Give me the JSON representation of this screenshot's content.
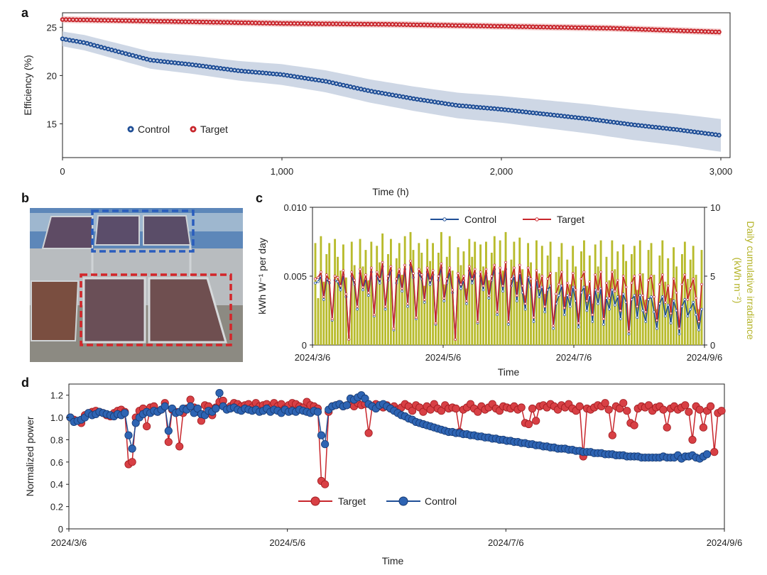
{
  "colors": {
    "control": "#1f4e96",
    "target": "#c8262c",
    "irradiance": "#b8bb2c",
    "control_band": "#c5d0e0",
    "target_band": "#f1c6c6"
  },
  "chart_data": [
    {
      "panel": "a",
      "type": "scatter",
      "xlabel": "Time (h)",
      "ylabel": "Efficiency (%)",
      "xlim": [
        0,
        3000
      ],
      "ylim": [
        11.5,
        26.5
      ],
      "xticks": [
        "0",
        "1,000",
        "2,000",
        "3,000"
      ],
      "xtick_values": [
        0,
        1000,
        2000,
        3000
      ],
      "yticks": [
        "15",
        "20",
        "25"
      ],
      "ytick_values": [
        15,
        20,
        25
      ],
      "legend": [
        "Control",
        "Target"
      ],
      "series": [
        {
          "name": "Control",
          "x": [
            0,
            100,
            200,
            400,
            600,
            800,
            1000,
            1200,
            1400,
            1600,
            1800,
            2000,
            2200,
            2400,
            2600,
            2800,
            3000
          ],
          "values": [
            23.8,
            23.4,
            22.8,
            21.6,
            21.1,
            20.5,
            20.1,
            19.4,
            18.4,
            17.6,
            16.9,
            16.5,
            16.0,
            15.5,
            14.9,
            14.4,
            13.8
          ],
          "band": 1.7
        },
        {
          "name": "Target",
          "x": [
            0,
            500,
            1000,
            1500,
            2000,
            2500,
            3000
          ],
          "values": [
            25.8,
            25.6,
            25.4,
            25.3,
            25.1,
            24.9,
            24.5
          ],
          "band": 0.35
        }
      ]
    },
    {
      "panel": "c",
      "type": "line",
      "xlabel": "Time",
      "ylabel": "kWh W⁻¹ per day",
      "ylabel_right": "Daily cumulative irradiance (kWh m⁻²)",
      "ylabel_right_line1": "Daily cumulative irradiance",
      "ylabel_right_line2": "(kWh m⁻²)",
      "ylim": [
        0,
        0.01
      ],
      "ylim_right": [
        0,
        10
      ],
      "xticks": [
        "2024/3/6",
        "2024/5/6",
        "2024/7/6",
        "2024/9/6"
      ],
      "yticks": [
        "0",
        "0.005",
        "0.010"
      ],
      "yticks_right": [
        "0",
        "5",
        "10"
      ],
      "legend": [
        "Control",
        "Target"
      ],
      "irradiance": [
        7.4,
        3.4,
        7.9,
        4.6,
        6.6,
        7.4,
        1.8,
        7.7,
        6.4,
        5.4,
        7.3,
        4.9,
        0.7,
        7.5,
        5.8,
        3.1,
        7.7,
        5.7,
        6.9,
        4.7,
        7.5,
        2.5,
        7.2,
        6.0,
        8.1,
        3.4,
        6.6,
        7.7,
        1.3,
        6.3,
        7.4,
        5.1,
        7.9,
        3.6,
        8.2,
        6.9,
        2.6,
        7.4,
        6.7,
        4.3,
        7.7,
        6.1,
        7.4,
        2.3,
        6.7,
        8.2,
        4.4,
        6.4,
        7.9,
        5.4,
        1.2,
        7.1,
        5.8,
        6.8,
        4.1,
        7.7,
        6.4,
        7.5,
        2.2,
        7.3,
        5.7,
        7.5,
        4.7,
        6.7,
        7.9,
        3.1,
        7.6,
        5.4,
        8.2,
        2.2,
        6.2,
        7.5,
        4.6,
        7.8,
        5.5,
        3.6,
        7.4,
        6.0,
        2.5,
        7.6,
        5.2,
        7.2,
        3.7,
        6.5,
        7.5,
        1.3,
        5.3,
        6.4,
        7.4,
        3.5,
        6.2,
        4.4,
        7.2,
        5.7,
        2.3,
        6.8,
        7.6,
        4.3,
        6.5,
        3.0,
        7.3,
        5.7,
        7.6,
        2.6,
        6.4,
        4.7,
        7.6,
        5.5,
        6.8,
        3.6,
        7.3,
        6.1,
        1.3,
        6.6,
        7.2,
        4.0,
        7.6,
        5.2,
        3.3,
        6.9,
        7.4,
        5.1,
        2.6,
        6.5,
        7.6,
        4.6,
        6.3,
        3.4,
        7.1,
        5.7,
        1.6,
        6.6,
        7.5,
        4.8,
        6.2,
        7.2,
        5.1,
        2.6,
        6.9
      ],
      "series": [
        {
          "name": "Control",
          "values": [
            0.0045,
            0.0046,
            0.005,
            0.0033,
            0.0048,
            0.0045,
            0.0018,
            0.0047,
            0.0046,
            0.004,
            0.0051,
            0.0035,
            0.0004,
            0.005,
            0.0044,
            0.0026,
            0.0052,
            0.004,
            0.0048,
            0.0036,
            0.0053,
            0.0021,
            0.005,
            0.0045,
            0.0057,
            0.0026,
            0.0047,
            0.0054,
            0.0011,
            0.0045,
            0.0052,
            0.0039,
            0.0055,
            0.0028,
            0.0058,
            0.0049,
            0.0019,
            0.0052,
            0.0048,
            0.0031,
            0.0053,
            0.0044,
            0.0051,
            0.0015,
            0.0047,
            0.0056,
            0.0032,
            0.0045,
            0.0053,
            0.0038,
            0.0004,
            0.0049,
            0.0041,
            0.0047,
            0.003,
            0.0054,
            0.0045,
            0.0052,
            0.0016,
            0.005,
            0.004,
            0.0052,
            0.0034,
            0.0047,
            0.0055,
            0.0022,
            0.0052,
            0.0039,
            0.0055,
            0.0015,
            0.0043,
            0.005,
            0.0032,
            0.0052,
            0.0038,
            0.0026,
            0.0049,
            0.0042,
            0.0017,
            0.0047,
            0.0035,
            0.0042,
            0.0024,
            0.004,
            0.0043,
            0.0012,
            0.003,
            0.0036,
            0.0043,
            0.0022,
            0.0036,
            0.0028,
            0.0042,
            0.0032,
            0.0013,
            0.0038,
            0.0042,
            0.0025,
            0.0036,
            0.0017,
            0.004,
            0.003,
            0.0041,
            0.0015,
            0.0034,
            0.0026,
            0.004,
            0.0029,
            0.0035,
            0.0019,
            0.0037,
            0.0031,
            0.0008,
            0.0033,
            0.0036,
            0.002,
            0.0036,
            0.0025,
            0.0017,
            0.0033,
            0.0035,
            0.0024,
            0.0012,
            0.003,
            0.0035,
            0.0021,
            0.0029,
            0.0016,
            0.0032,
            0.0025,
            0.0008,
            0.0028,
            0.0033,
            0.0021,
            0.0026,
            0.0031,
            0.0022,
            0.0011,
            0.0026
          ]
        },
        {
          "name": "Target",
          "values": [
            0.0048,
            0.0049,
            0.0053,
            0.0035,
            0.0051,
            0.0047,
            0.0019,
            0.005,
            0.0049,
            0.0043,
            0.0054,
            0.0037,
            0.0004,
            0.0053,
            0.0047,
            0.0028,
            0.0055,
            0.0042,
            0.0051,
            0.0038,
            0.0056,
            0.0022,
            0.0053,
            0.0048,
            0.006,
            0.0028,
            0.005,
            0.0057,
            0.0012,
            0.0048,
            0.0055,
            0.0041,
            0.0058,
            0.003,
            0.0061,
            0.0052,
            0.002,
            0.0055,
            0.0051,
            0.0033,
            0.0056,
            0.0047,
            0.0054,
            0.0016,
            0.005,
            0.0059,
            0.0034,
            0.0048,
            0.0056,
            0.004,
            0.0004,
            0.0052,
            0.0044,
            0.005,
            0.0032,
            0.0057,
            0.0048,
            0.0055,
            0.0017,
            0.0053,
            0.0043,
            0.0055,
            0.0036,
            0.005,
            0.0058,
            0.0024,
            0.0056,
            0.0043,
            0.006,
            0.0017,
            0.0048,
            0.0056,
            0.0036,
            0.0058,
            0.0043,
            0.003,
            0.0056,
            0.0048,
            0.002,
            0.0054,
            0.0041,
            0.005,
            0.0028,
            0.0048,
            0.0052,
            0.0014,
            0.0037,
            0.0044,
            0.0053,
            0.0027,
            0.0045,
            0.0035,
            0.0052,
            0.004,
            0.0016,
            0.0048,
            0.0053,
            0.0032,
            0.0046,
            0.0022,
            0.0051,
            0.0039,
            0.0053,
            0.0019,
            0.0045,
            0.0034,
            0.0053,
            0.0039,
            0.0047,
            0.0025,
            0.005,
            0.0042,
            0.001,
            0.0045,
            0.005,
            0.0028,
            0.0051,
            0.0036,
            0.0024,
            0.0047,
            0.005,
            0.0035,
            0.0018,
            0.0044,
            0.0051,
            0.0031,
            0.0043,
            0.0023,
            0.0048,
            0.0038,
            0.0012,
            0.0044,
            0.0051,
            0.0033,
            0.0041,
            0.0048,
            0.0034,
            0.0017,
            0.0044
          ]
        }
      ]
    },
    {
      "panel": "d",
      "type": "line",
      "xlabel": "Time",
      "ylabel": "Normalized power",
      "ylim": [
        0,
        1.3
      ],
      "xticks": [
        "2024/3/6",
        "2024/5/6",
        "2024/7/6",
        "2024/9/6"
      ],
      "yticks": [
        "0",
        "0.2",
        "0.4",
        "0.6",
        "0.8",
        "1.0",
        "1.2"
      ],
      "ytick_values": [
        0,
        0.2,
        0.4,
        0.6,
        0.8,
        1.0,
        1.2
      ],
      "legend": [
        "Target",
        "Control"
      ],
      "series": [
        {
          "name": "Target",
          "values": [
            1.0,
            0.98,
            0.97,
            0.95,
            1.02,
            1.04,
            1.05,
            1.06,
            1.05,
            1.04,
            1.02,
            1.01,
            1.04,
            1.06,
            1.07,
            1.05,
            0.58,
            0.6,
            1.0,
            1.06,
            1.08,
            0.92,
            1.09,
            1.1,
            1.05,
            1.07,
            1.13,
            0.78,
            1.07,
            1.05,
            0.74,
            1.04,
            1.08,
            1.16,
            1.09,
            1.05,
            0.97,
            1.11,
            1.1,
            1.02,
            1.09,
            1.14,
            1.15,
            1.08,
            1.1,
            1.13,
            1.12,
            1.1,
            1.11,
            1.12,
            1.09,
            1.13,
            1.1,
            1.11,
            1.12,
            1.09,
            1.13,
            1.1,
            1.12,
            1.08,
            1.11,
            1.13,
            1.12,
            1.1,
            1.09,
            1.14,
            1.11,
            1.1,
            1.08,
            0.43,
            0.4,
            1.05,
            1.1,
            1.11,
            1.12,
            1.1,
            1.11,
            1.12,
            1.1,
            1.13,
            1.11,
            1.12,
            0.86,
            1.1,
            1.12,
            1.1,
            1.09,
            1.11,
            1.08,
            1.1,
            1.07,
            1.09,
            1.12,
            1.1,
            1.06,
            1.11,
            1.09,
            1.05,
            1.1,
            1.07,
            1.12,
            1.08,
            1.06,
            1.11,
            1.08,
            1.09,
            1.08,
            0.87,
            1.07,
            1.09,
            1.12,
            1.08,
            1.05,
            1.1,
            1.07,
            1.09,
            1.12,
            1.08,
            1.06,
            1.1,
            1.09,
            1.08,
            1.1,
            1.07,
            1.09,
            0.95,
            0.94,
            1.08,
            0.97,
            1.1,
            1.11,
            1.09,
            1.12,
            1.1,
            1.07,
            1.11,
            1.09,
            1.12,
            1.08,
            1.06,
            1.1,
            0.65,
            1.08,
            1.07,
            1.09,
            1.11,
            1.1,
            1.13,
            1.07,
            0.84,
            1.1,
            1.08,
            1.13,
            1.06,
            0.95,
            0.93,
            1.08,
            1.1,
            1.09,
            1.11,
            1.06,
            1.09,
            1.1,
            1.07,
            0.91,
            1.08,
            1.1,
            1.07,
            1.09,
            1.11,
            1.05,
            0.8,
            1.1,
            1.07,
            0.91,
            1.06,
            1.1,
            0.69,
            1.04,
            1.06
          ]
        },
        {
          "name": "Control",
          "values": [
            1.0,
            0.96,
            0.97,
            0.98,
            1.0,
            1.04,
            1.02,
            1.03,
            1.05,
            1.04,
            1.03,
            1.02,
            1.01,
            1.03,
            1.02,
            1.04,
            0.84,
            0.72,
            0.95,
            1.0,
            1.03,
            1.05,
            1.04,
            1.06,
            1.05,
            1.07,
            1.1,
            0.88,
            1.08,
            1.04,
            1.05,
            1.08,
            1.07,
            1.1,
            1.04,
            1.08,
            1.03,
            1.02,
            1.06,
            1.05,
            1.08,
            1.22,
            1.1,
            1.07,
            1.08,
            1.09,
            1.07,
            1.06,
            1.08,
            1.07,
            1.06,
            1.07,
            1.05,
            1.06,
            1.08,
            1.05,
            1.07,
            1.06,
            1.04,
            1.07,
            1.05,
            1.06,
            1.05,
            1.07,
            1.06,
            1.05,
            1.04,
            1.06,
            1.05,
            0.84,
            0.76,
            1.07,
            1.1,
            1.11,
            1.12,
            1.1,
            1.11,
            1.17,
            1.16,
            1.18,
            1.2,
            1.17,
            1.12,
            1.1,
            1.08,
            1.11,
            1.12,
            1.1,
            1.08,
            1.06,
            1.04,
            1.02,
            1.01,
            0.99,
            0.98,
            0.96,
            0.95,
            0.94,
            0.93,
            0.92,
            0.91,
            0.9,
            0.89,
            0.88,
            0.87,
            0.87,
            0.86,
            0.86,
            0.85,
            0.85,
            0.84,
            0.84,
            0.83,
            0.83,
            0.82,
            0.82,
            0.81,
            0.81,
            0.8,
            0.8,
            0.79,
            0.79,
            0.78,
            0.78,
            0.77,
            0.77,
            0.76,
            0.76,
            0.75,
            0.75,
            0.74,
            0.74,
            0.73,
            0.73,
            0.72,
            0.72,
            0.72,
            0.71,
            0.71,
            0.7,
            0.7,
            0.69,
            0.69,
            0.69,
            0.68,
            0.68,
            0.68,
            0.67,
            0.67,
            0.67,
            0.66,
            0.66,
            0.66,
            0.65,
            0.65,
            0.65,
            0.65,
            0.64,
            0.64,
            0.64,
            0.64,
            0.64,
            0.64,
            0.65,
            0.64,
            0.64,
            0.64,
            0.66,
            0.63,
            0.65,
            0.65,
            0.66,
            0.64,
            0.63,
            0.65,
            0.67
          ]
        }
      ]
    }
  ]
}
